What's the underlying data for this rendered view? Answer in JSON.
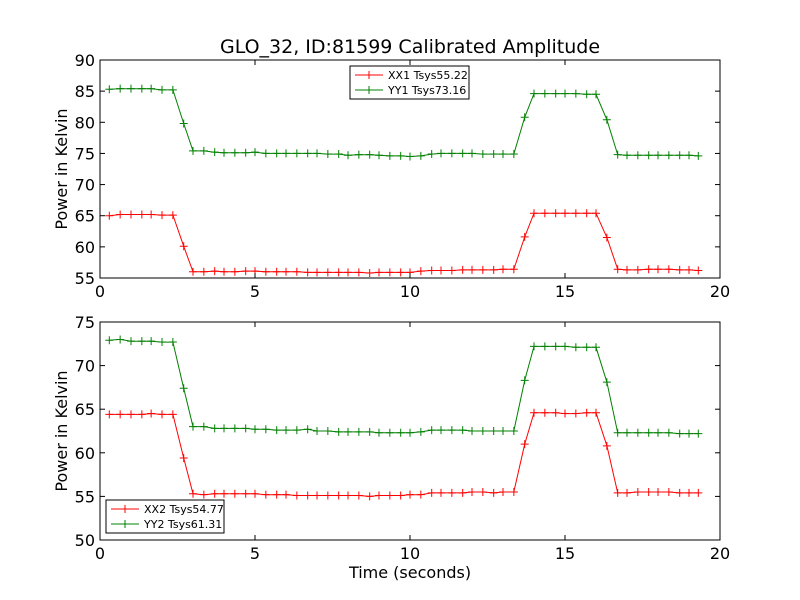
{
  "chart_data": [
    {
      "type": "line",
      "title": "GLO_32, ID:81599 Calibrated Amplitude",
      "xlabel": "",
      "ylabel": "Power in Kelvin",
      "xlim": [
        0,
        20
      ],
      "ylim": [
        55,
        90
      ],
      "xticks": [
        "0",
        "5",
        "10",
        "15",
        "20"
      ],
      "yticks": [
        "55",
        "60",
        "65",
        "70",
        "75",
        "80",
        "85",
        "90"
      ],
      "legend_position": "upper-center",
      "x": [
        0.3,
        0.65,
        1.0,
        1.35,
        1.65,
        2.0,
        2.35,
        2.7,
        3.0,
        3.35,
        3.7,
        4.0,
        4.35,
        4.7,
        5.0,
        5.35,
        5.7,
        6.0,
        6.35,
        6.7,
        7.0,
        7.35,
        7.7,
        8.0,
        8.35,
        8.7,
        9.0,
        9.35,
        9.7,
        10.0,
        10.35,
        10.7,
        11.0,
        11.35,
        11.7,
        12.0,
        12.35,
        12.7,
        13.0,
        13.35,
        13.7,
        14.0,
        14.35,
        14.7,
        15.0,
        15.35,
        15.7,
        16.0,
        16.35,
        16.7,
        17.0,
        17.35,
        17.7,
        18.0,
        18.35,
        18.7,
        19.0,
        19.3
      ],
      "series": [
        {
          "name": "XX1 Tsys55.22",
          "color": "#ff0000",
          "values": [
            65.0,
            65.2,
            65.2,
            65.2,
            65.2,
            65.1,
            65.1,
            60.1,
            56.0,
            56.0,
            56.1,
            56.0,
            56.0,
            56.1,
            56.1,
            56.0,
            56.0,
            56.0,
            56.0,
            55.9,
            55.9,
            55.9,
            55.9,
            55.9,
            55.9,
            55.8,
            55.9,
            55.9,
            55.9,
            55.9,
            56.1,
            56.2,
            56.2,
            56.2,
            56.3,
            56.3,
            56.3,
            56.3,
            56.4,
            56.4,
            61.6,
            65.4,
            65.4,
            65.4,
            65.4,
            65.4,
            65.4,
            65.4,
            61.5,
            56.4,
            56.3,
            56.3,
            56.4,
            56.4,
            56.4,
            56.3,
            56.3,
            56.2
          ]
        },
        {
          "name": "YY1 Tsys73.16",
          "color": "#008000",
          "values": [
            85.3,
            85.4,
            85.4,
            85.4,
            85.4,
            85.2,
            85.2,
            79.8,
            75.4,
            75.4,
            75.2,
            75.1,
            75.1,
            75.1,
            75.2,
            75.0,
            75.0,
            75.0,
            75.0,
            75.0,
            75.0,
            74.9,
            74.9,
            74.7,
            74.8,
            74.8,
            74.7,
            74.6,
            74.6,
            74.5,
            74.6,
            74.9,
            75.0,
            75.0,
            75.0,
            75.0,
            74.9,
            74.9,
            74.9,
            74.9,
            80.8,
            84.6,
            84.6,
            84.6,
            84.6,
            84.6,
            84.5,
            84.5,
            80.4,
            74.8,
            74.7,
            74.7,
            74.7,
            74.7,
            74.7,
            74.7,
            74.7,
            74.6
          ]
        }
      ]
    },
    {
      "type": "line",
      "title": "",
      "xlabel": "Time (seconds)",
      "ylabel": "Power in Kelvin",
      "xlim": [
        0,
        20
      ],
      "ylim": [
        50,
        75
      ],
      "xticks": [
        "0",
        "5",
        "10",
        "15",
        "20"
      ],
      "yticks": [
        "50",
        "55",
        "60",
        "65",
        "70",
        "75"
      ],
      "legend_position": "lower-left",
      "x": [
        0.3,
        0.65,
        1.0,
        1.35,
        1.65,
        2.0,
        2.35,
        2.7,
        3.0,
        3.35,
        3.7,
        4.0,
        4.35,
        4.7,
        5.0,
        5.35,
        5.7,
        6.0,
        6.35,
        6.7,
        7.0,
        7.35,
        7.7,
        8.0,
        8.35,
        8.7,
        9.0,
        9.35,
        9.7,
        10.0,
        10.35,
        10.7,
        11.0,
        11.35,
        11.7,
        12.0,
        12.35,
        12.7,
        13.0,
        13.35,
        13.7,
        14.0,
        14.35,
        14.7,
        15.0,
        15.35,
        15.7,
        16.0,
        16.35,
        16.7,
        17.0,
        17.35,
        17.7,
        18.0,
        18.35,
        18.7,
        19.0,
        19.3
      ],
      "series": [
        {
          "name": "XX2 Tsys54.77",
          "color": "#ff0000",
          "values": [
            64.4,
            64.4,
            64.4,
            64.4,
            64.5,
            64.4,
            64.4,
            59.4,
            55.3,
            55.2,
            55.3,
            55.3,
            55.3,
            55.3,
            55.3,
            55.2,
            55.2,
            55.2,
            55.1,
            55.1,
            55.1,
            55.1,
            55.1,
            55.1,
            55.1,
            55.0,
            55.1,
            55.1,
            55.1,
            55.2,
            55.2,
            55.4,
            55.4,
            55.4,
            55.4,
            55.5,
            55.5,
            55.4,
            55.5,
            55.5,
            61.0,
            64.6,
            64.6,
            64.6,
            64.5,
            64.5,
            64.6,
            64.6,
            60.8,
            55.4,
            55.4,
            55.5,
            55.5,
            55.5,
            55.5,
            55.4,
            55.4,
            55.4
          ]
        },
        {
          "name": "YY2 Tsys61.31",
          "color": "#008000",
          "values": [
            72.9,
            73.0,
            72.8,
            72.8,
            72.8,
            72.7,
            72.7,
            67.4,
            63.0,
            63.0,
            62.8,
            62.8,
            62.8,
            62.8,
            62.7,
            62.7,
            62.6,
            62.6,
            62.6,
            62.7,
            62.5,
            62.5,
            62.4,
            62.4,
            62.4,
            62.4,
            62.3,
            62.3,
            62.3,
            62.3,
            62.4,
            62.6,
            62.6,
            62.6,
            62.6,
            62.5,
            62.5,
            62.5,
            62.5,
            62.5,
            68.3,
            72.2,
            72.2,
            72.2,
            72.2,
            72.1,
            72.1,
            72.1,
            68.1,
            62.3,
            62.3,
            62.3,
            62.3,
            62.3,
            62.3,
            62.2,
            62.2,
            62.2
          ]
        }
      ]
    }
  ]
}
